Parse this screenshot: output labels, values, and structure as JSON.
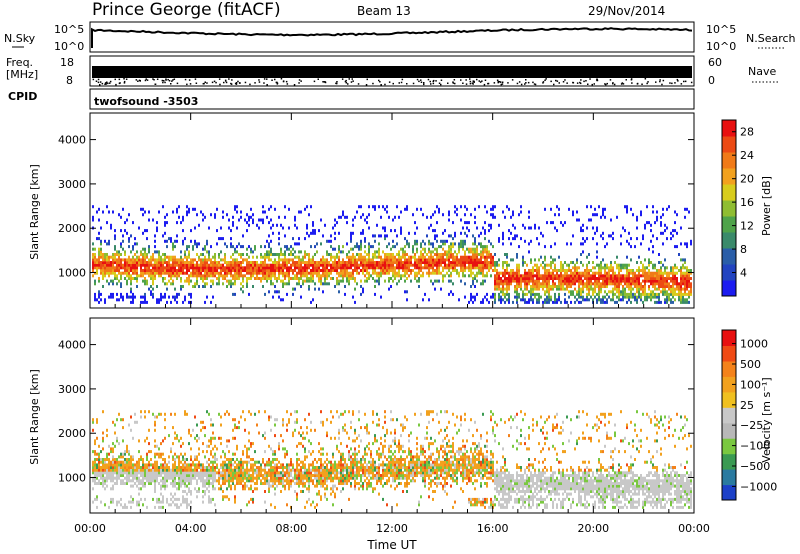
{
  "header": {
    "station": "Prince George (fitACF)",
    "beam": "Beam 13",
    "date": "29/Nov/2014"
  },
  "strip_panels": {
    "nsky_label": "N.Sky",
    "nsky_ticks": [
      "10^5",
      "10^0"
    ],
    "nsearch_label": "N.Search",
    "nsearch_ticks": [
      "10^5",
      "10^0"
    ],
    "freq_label_1": "Freq.",
    "freq_label_2": "[MHz]",
    "freq_ticks": [
      "18",
      "8"
    ],
    "nave_label": "Nave",
    "nave_ticks": [
      "60",
      "0"
    ],
    "cpid_label": "CPID",
    "cpid_value": "twofsound -3503"
  },
  "colors": {
    "power": [
      "#1c1cf0",
      "#2244c0",
      "#2a5ea8",
      "#3a8a6a",
      "#4fa34a",
      "#8fbd32",
      "#d8cc1c",
      "#f2a11e",
      "#f07a18",
      "#ec4a14",
      "#e81010"
    ],
    "velocity": [
      "#e81010",
      "#f04a14",
      "#f4821a",
      "#f2a11e",
      "#f0c020",
      "#c8c8c8",
      "#b8b8b8",
      "#7ac840",
      "#3a9a52",
      "#2a7aa0",
      "#1c40c8"
    ]
  },
  "chart_data": [
    {
      "type": "heatmap",
      "name": "power",
      "ylabel": "Slant Range [km]",
      "yticks": [
        1000,
        2000,
        3000,
        4000
      ],
      "ylim": [
        200,
        4600
      ],
      "xlim_hours": [
        0,
        24
      ],
      "colorbar_label": "Power [dB]",
      "colorbar_ticks": [
        "4",
        "8",
        "12",
        "16",
        "20",
        "24",
        "28"
      ],
      "colorbar_range": [
        0,
        30
      ]
    },
    {
      "type": "heatmap",
      "name": "velocity",
      "ylabel": "Slant Range [km]",
      "yticks": [
        1000,
        2000,
        3000,
        4000
      ],
      "ylim": [
        200,
        4600
      ],
      "xlim_hours": [
        0,
        24
      ],
      "xticks": [
        "00:00",
        "04:00",
        "08:00",
        "12:00",
        "16:00",
        "20:00",
        "00:00"
      ],
      "xlabel": "Time UT",
      "colorbar_label": "Velocity [m s⁻¹]",
      "colorbar_ticks": [
        "1000",
        "500",
        "100",
        "25",
        "−25",
        "−100",
        "−500",
        "−1000"
      ]
    }
  ]
}
